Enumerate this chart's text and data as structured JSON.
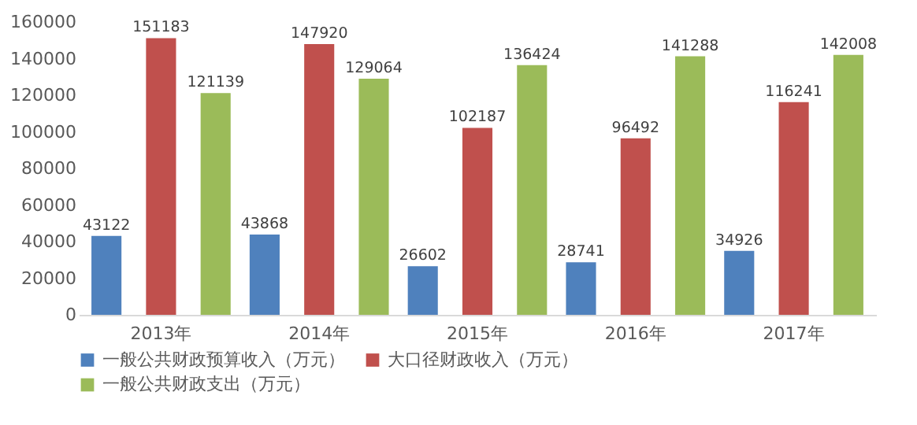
{
  "chart_data": {
    "type": "bar",
    "categories": [
      "2013年",
      "2014年",
      "2015年",
      "2016年",
      "2017年"
    ],
    "series": [
      {
        "name": "一般公共财政预算收入（万元）",
        "color": "#4f81bd",
        "values": [
          43122,
          43868,
          26602,
          28741,
          34926
        ]
      },
      {
        "name": "大口径财政收入（万元）",
        "color": "#c0504d",
        "values": [
          151183,
          147920,
          102187,
          96492,
          116241
        ]
      },
      {
        "name": "一般公共财政支出（万元）",
        "color": "#9bbb59",
        "values": [
          121139,
          129064,
          136424,
          141288,
          142008
        ]
      }
    ],
    "ylim": [
      0,
      160000
    ],
    "yticks": [
      0,
      20000,
      40000,
      60000,
      80000,
      100000,
      120000,
      140000,
      160000
    ],
    "data_labels": true,
    "grid": false,
    "legend": "bottom"
  }
}
